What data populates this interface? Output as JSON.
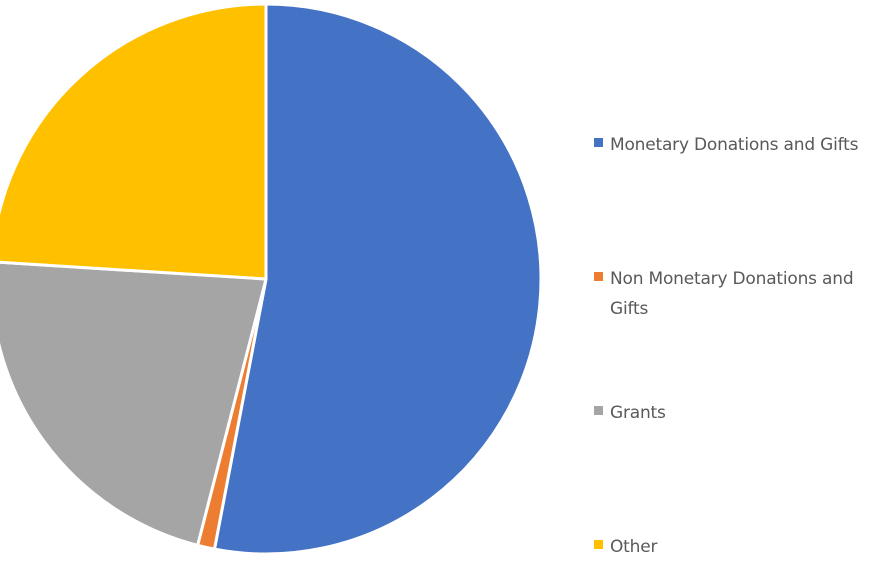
{
  "chart_data": {
    "type": "pie",
    "title": "",
    "legend_position": "right",
    "slices": [
      {
        "label": "Monetary Donations and Gifts",
        "value": 53,
        "color": "#4472C4"
      },
      {
        "label": "Non Monetary Donations and Gifts",
        "value": 1,
        "color": "#ED7D31"
      },
      {
        "label": "Grants",
        "value": 22,
        "color": "#A5A5A5"
      },
      {
        "label": "Other",
        "value": 24,
        "color": "#FFC000"
      }
    ]
  }
}
